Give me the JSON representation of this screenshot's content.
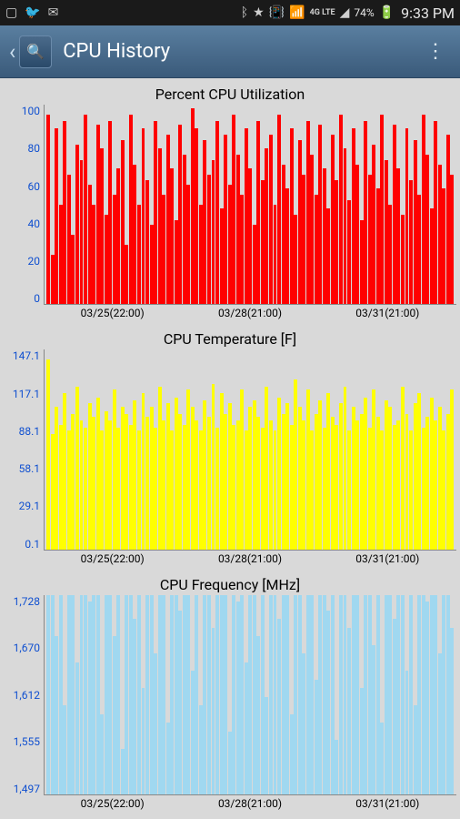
{
  "status_bar": {
    "battery_pct": "74%",
    "time": "9:33 PM",
    "network": "4G LTE"
  },
  "app_bar": {
    "title": "CPU History"
  },
  "charts": [
    {
      "title": "Percent CPU Utilization",
      "type": "bar",
      "bar_color": "#ff0000",
      "ylim": [
        0,
        100
      ],
      "yticks": [
        "100",
        "80",
        "60",
        "40",
        "20",
        "0"
      ],
      "xticks": [
        "03/25(22:00)",
        "03/28(21:00)",
        "03/31(21:00)"
      ],
      "values": [
        95,
        25,
        88,
        50,
        92,
        65,
        35,
        80,
        72,
        95,
        60,
        50,
        90,
        78,
        45,
        92,
        55,
        68,
        82,
        30,
        95,
        70,
        50,
        88,
        62,
        40,
        92,
        78,
        55,
        85,
        68,
        42,
        90,
        75,
        60,
        98,
        88,
        50,
        82,
        65,
        72,
        92,
        48,
        85,
        60,
        95,
        75,
        55,
        88,
        68,
        40,
        92,
        62,
        78,
        85,
        50,
        95,
        70,
        58,
        88,
        45,
        82,
        65,
        92,
        75,
        55,
        90,
        68,
        48,
        85,
        62,
        95,
        78,
        52,
        88,
        70,
        42,
        92,
        65,
        80,
        58,
        95,
        72,
        50,
        90,
        68,
        45,
        88,
        62,
        82,
        55,
        95,
        75,
        48,
        92,
        70,
        58,
        85,
        65
      ]
    },
    {
      "title": "CPU Temperature [F]",
      "type": "bar",
      "bar_color": "#ffff00",
      "ylim": [
        0.1,
        147.1
      ],
      "yticks": [
        "147.1",
        "117.1",
        "88.1",
        "58.1",
        "29.1",
        "0.1"
      ],
      "xticks": [
        "03/25(22:00)",
        "03/28(21:00)",
        "03/31(21:00)"
      ],
      "values": [
        140,
        85,
        105,
        92,
        115,
        88,
        100,
        120,
        95,
        90,
        108,
        98,
        112,
        88,
        102,
        95,
        118,
        90,
        105,
        100,
        92,
        110,
        88,
        115,
        98,
        105,
        90,
        120,
        95,
        108,
        88,
        112,
        100,
        92,
        118,
        105,
        95,
        88,
        110,
        98,
        122,
        90,
        115,
        100,
        108,
        92,
        95,
        118,
        88,
        105,
        110,
        98,
        90,
        120,
        95,
        88,
        112,
        100,
        108,
        92,
        125,
        105,
        95,
        118,
        88,
        100,
        110,
        90,
        115,
        98,
        92,
        108,
        120,
        88,
        105,
        95,
        100,
        112,
        90,
        118,
        98,
        88,
        110,
        105,
        92,
        95,
        120,
        100,
        88,
        108,
        115,
        90,
        98,
        112,
        95,
        105,
        88,
        100,
        118
      ]
    },
    {
      "title": "CPU Frequency [MHz]",
      "type": "bar",
      "bar_color": "#a0d8f0",
      "ylim": [
        1497,
        1728
      ],
      "yticks": [
        "1,728",
        "1,670",
        "1,612",
        "1,555",
        "1,497"
      ],
      "xticks": [
        "03/25(22:00)",
        "03/28(21:00)",
        "03/31(21:00)"
      ],
      "values": [
        1728,
        1728,
        1680,
        1728,
        1600,
        1728,
        1728,
        1650,
        1728,
        1728,
        1720,
        1728,
        1728,
        1590,
        1728,
        1728,
        1680,
        1728,
        1550,
        1728,
        1728,
        1700,
        1728,
        1620,
        1728,
        1728,
        1660,
        1728,
        1728,
        1580,
        1728,
        1728,
        1710,
        1728,
        1728,
        1640,
        1728,
        1600,
        1728,
        1728,
        1690,
        1728,
        1728,
        1728,
        1570,
        1728,
        1720,
        1728,
        1650,
        1728,
        1728,
        1680,
        1728,
        1610,
        1728,
        1728,
        1700,
        1728,
        1728,
        1590,
        1728,
        1728,
        1660,
        1728,
        1728,
        1630,
        1728,
        1728,
        1710,
        1728,
        1560,
        1728,
        1728,
        1690,
        1728,
        1728,
        1620,
        1728,
        1728,
        1670,
        1728,
        1580,
        1728,
        1728,
        1700,
        1728,
        1728,
        1640,
        1728,
        1600,
        1728,
        1728,
        1720,
        1728,
        1728,
        1660,
        1728,
        1728,
        1690
      ]
    }
  ]
}
